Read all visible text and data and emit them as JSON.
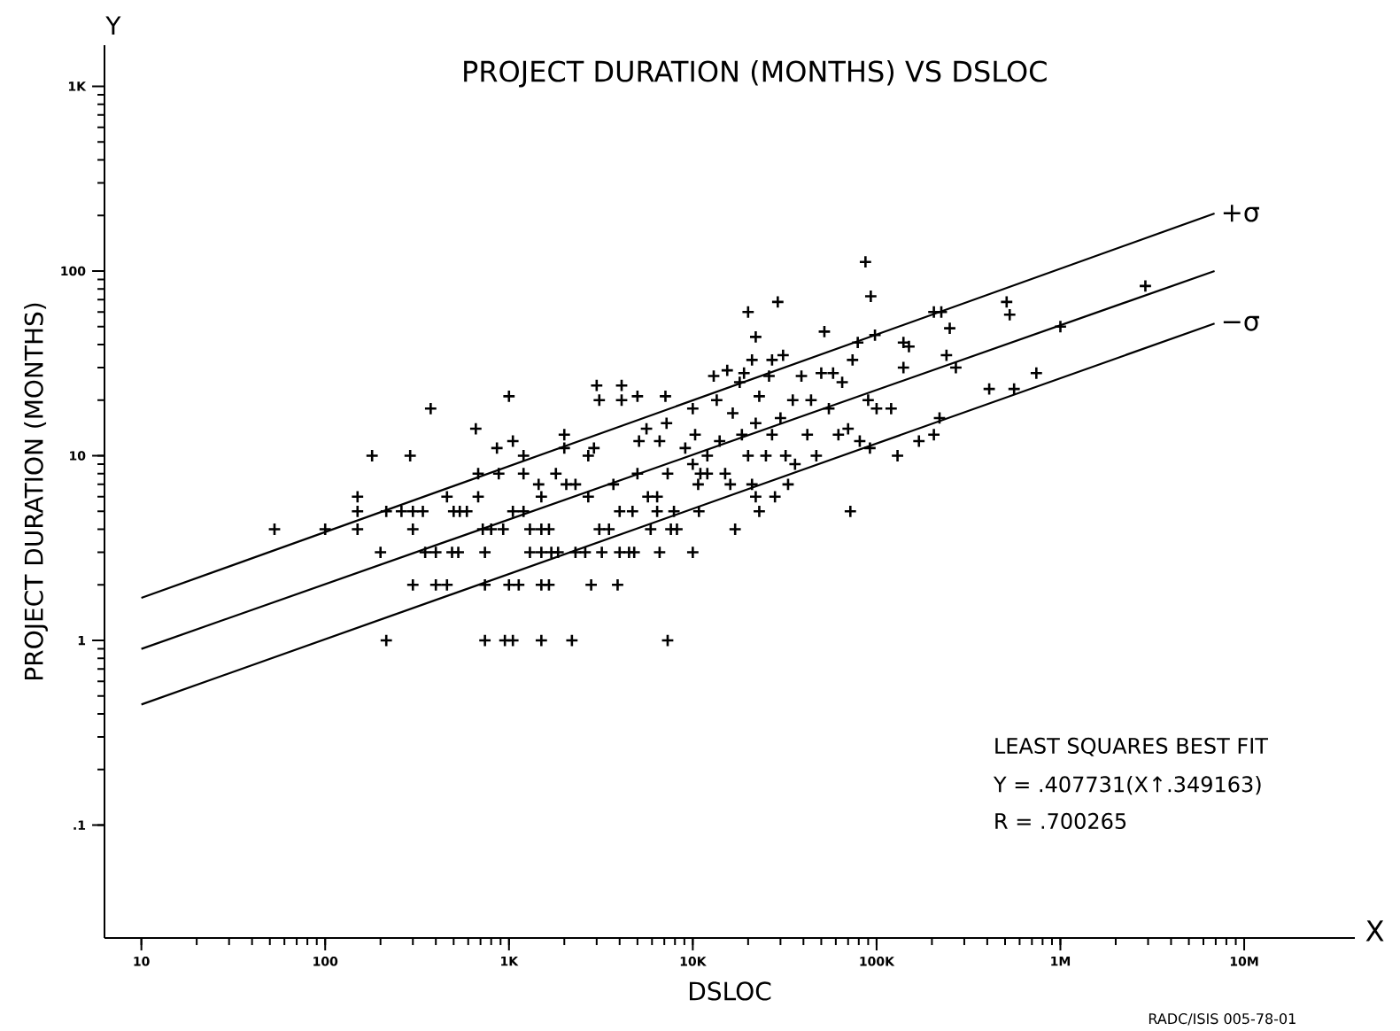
{
  "chart_data": {
    "type": "scatter",
    "title": "PROJECT DURATION (MONTHS)  VS  DSLOC",
    "xlabel": "DSLOC",
    "ylabel": "PROJECT DURATION (MONTHS)",
    "annotations": [
      "LEAST SQUARES BEST FIT",
      "Y = .407731(X↑.349163)",
      "R = .700265",
      "RADC/ISIS 005-78-01",
      "Y",
      "X"
    ],
    "log": "xy",
    "marker": "cross",
    "legend": false,
    "xlim": [
      6.3,
      40000000
    ],
    "ylim": [
      0.0245,
      1670
    ],
    "xticks": [
      10,
      100,
      {
        "value": 1000,
        "label": "1K"
      },
      {
        "value": 10000,
        "label": "10K"
      },
      {
        "value": 100000,
        "label": "100K"
      },
      {
        "value": 1000000,
        "label": "1M"
      },
      {
        "value": 10000000,
        "label": "10M"
      }
    ],
    "yticks": [
      {
        "value": 0.1,
        "label": ".1"
      },
      1,
      10,
      100,
      {
        "value": 1000,
        "label": "1K"
      }
    ],
    "series": [
      {
        "color": "#000000",
        "x": [
          53,
          100,
          150,
          150,
          150,
          180,
          200,
          215,
          215,
          260,
          290,
          300,
          300,
          300,
          350,
          340,
          375,
          400,
          400,
          460,
          460,
          490,
          530,
          500,
          540,
          590,
          660,
          680,
          680,
          740,
          740,
          740,
          720,
          800,
          860,
          880,
          930,
          950,
          1000,
          1000,
          1050,
          1050,
          1050,
          1130,
          1200,
          1200,
          1200,
          1300,
          1300,
          1500,
          1500,
          1500,
          1500,
          1450,
          1500,
          1650,
          1650,
          1700,
          1800,
          1850,
          2000,
          2000,
          2050,
          2200,
          2300,
          2300,
          2600,
          2700,
          2700,
          2800,
          2900,
          3000,
          3100,
          3200,
          3100,
          3500,
          3700,
          3900,
          4000,
          4000,
          4100,
          4100,
          4500,
          4700,
          4800,
          5000,
          5000,
          5100,
          5600,
          5700,
          5900,
          6400,
          6600,
          6600,
          6400,
          7100,
          7200,
          7300,
          7300,
          7600,
          7900,
          8200,
          9100,
          10000,
          10000,
          10000,
          10300,
          10700,
          10800,
          11000,
          12000,
          12000,
          13000,
          13500,
          14000,
          15000,
          15400,
          16000,
          16500,
          17000,
          18000,
          18500,
          19000,
          20000,
          20000,
          21000,
          21000,
          22000,
          22000,
          22000,
          23000,
          23000,
          25000,
          26000,
          27000,
          27000,
          28000,
          29000,
          30000,
          31000,
          32000,
          33000,
          35000,
          36000,
          39000,
          42000,
          44000,
          47000,
          50000,
          52000,
          55000,
          58000,
          62000,
          65000,
          70000,
          72000,
          74000,
          79000,
          81000,
          87000,
          90000,
          93000,
          92000,
          98000,
          100000,
          120000,
          130000,
          140000,
          140000,
          150000,
          170000,
          205000,
          225000,
          205000,
          220000,
          240000,
          250000,
          270000,
          410000,
          510000,
          530000,
          560000,
          740000,
          1000000,
          2900000
        ],
        "values": [
          4,
          4,
          6,
          5,
          4,
          10,
          3,
          1,
          5,
          5,
          10,
          2,
          4,
          5,
          3,
          5,
          18,
          3,
          2,
          2,
          6,
          3,
          3,
          5,
          5,
          5,
          14,
          6,
          8,
          3,
          2,
          1,
          4,
          4,
          11,
          8,
          4,
          1,
          21,
          2,
          12,
          5,
          1,
          2,
          5,
          8,
          10,
          3,
          4,
          4,
          3,
          1,
          2,
          7,
          6,
          4,
          2,
          3,
          8,
          3,
          13,
          11,
          7,
          1,
          3,
          7,
          3,
          10,
          6,
          2,
          11,
          24,
          4,
          3,
          20,
          4,
          7,
          2,
          5,
          3,
          24,
          20,
          3,
          5,
          3,
          21,
          8,
          12,
          14,
          6,
          4,
          5,
          3,
          12,
          6,
          21,
          15,
          1,
          8,
          4,
          5,
          4,
          11,
          18,
          3,
          9,
          13,
          7,
          5,
          8,
          10,
          8,
          27,
          20,
          12,
          8,
          29,
          7,
          17,
          4,
          25,
          13,
          28,
          10,
          60,
          7,
          33,
          15,
          44,
          6,
          5,
          21,
          10,
          27,
          13,
          33,
          6,
          68,
          16,
          35,
          10,
          7,
          20,
          9,
          27,
          13,
          20,
          10,
          28,
          47,
          18,
          28,
          13,
          25,
          14,
          5,
          33,
          41,
          12,
          112,
          20,
          73,
          11,
          45,
          18,
          18,
          10,
          41,
          30,
          39,
          12,
          60,
          60,
          13,
          16,
          35,
          49,
          30,
          23,
          68,
          58,
          23,
          28,
          50,
          83
        ]
      },
      {
        "type": "line",
        "name": "+σ",
        "color": "#000000",
        "marker": "none",
        "x": [
          10,
          6900000
        ],
        "values": [
          1.7,
          205
        ]
      },
      {
        "type": "line",
        "color": "#000000",
        "marker": "none",
        "x": [
          10,
          6900000
        ],
        "values": [
          0.9,
          100
        ]
      },
      {
        "type": "line",
        "name": "−σ",
        "color": "#000000",
        "marker": "none",
        "x": [
          10,
          6900000
        ],
        "values": [
          0.45,
          52
        ]
      }
    ]
  }
}
